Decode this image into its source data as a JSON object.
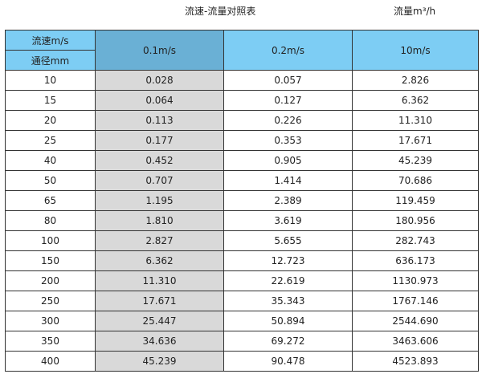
{
  "title": "流速-流量对照表",
  "unit_label": "流量m³/h",
  "header": {
    "velocity_label": "流速m/s",
    "diameter_label": "通径mm",
    "columns": [
      "0.1m/s",
      "0.2m/s",
      "10m/s"
    ]
  },
  "colors": {
    "header": "#7dcdf4",
    "header_highlight": "#6ab0d5",
    "highlight_column": "#d9d9d9"
  },
  "rows": [
    [
      "10",
      "0.028",
      "0.057",
      "2.826"
    ],
    [
      "15",
      "0.064",
      "0.127",
      "6.362"
    ],
    [
      "20",
      "0.113",
      "0.226",
      "11.310"
    ],
    [
      "25",
      "0.177",
      "0.353",
      "17.671"
    ],
    [
      "40",
      "0.452",
      "0.905",
      "45.239"
    ],
    [
      "50",
      "0.707",
      "1.414",
      "70.686"
    ],
    [
      "65",
      "1.195",
      "2.389",
      "119.459"
    ],
    [
      "80",
      "1.810",
      "3.619",
      "180.956"
    ],
    [
      "100",
      "2.827",
      "5.655",
      "282.743"
    ],
    [
      "150",
      "6.362",
      "12.723",
      "636.173"
    ],
    [
      "200",
      "11.310",
      "22.619",
      "1130.973"
    ],
    [
      "250",
      "17.671",
      "35.343",
      "1767.146"
    ],
    [
      "300",
      "25.447",
      "50.894",
      "2544.690"
    ],
    [
      "350",
      "34.636",
      "69.272",
      "3463.606"
    ],
    [
      "400",
      "45.239",
      "90.478",
      "4523.893"
    ]
  ]
}
